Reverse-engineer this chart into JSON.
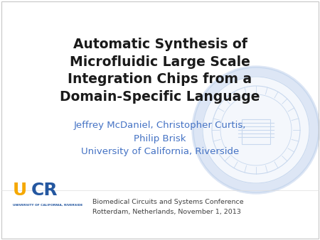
{
  "title_line1": "Automatic Synthesis of",
  "title_line2": "Microfluidic Large Scale",
  "title_line3": "Integration Chips from a",
  "title_line4": "Domain-Specific Language",
  "author_line1": "Jeffrey McDaniel, Christopher Curtis,",
  "author_line2": "Philip Brisk",
  "author_line3": "University of California, Riverside",
  "conf_line1": "Biomedical Circuits and Systems Conference",
  "conf_line2": "Rotterdam, Netherlands, November 1, 2013",
  "bg_color": "#ffffff",
  "title_color": "#1a1a1a",
  "author_color": "#4472c4",
  "conf_color": "#404040",
  "border_color": "#c8c8c8",
  "ucr_u_color": "#f5a800",
  "ucr_cr_color": "#2457a0",
  "watermark_color": "#dde6f5",
  "watermark_line_color": "#c8d8ee",
  "title_fontsize": 13.5,
  "author_fontsize": 9.5,
  "conf_fontsize": 6.8,
  "ucr_fontsize": 18,
  "ucr_sub_fontsize": 3.2
}
